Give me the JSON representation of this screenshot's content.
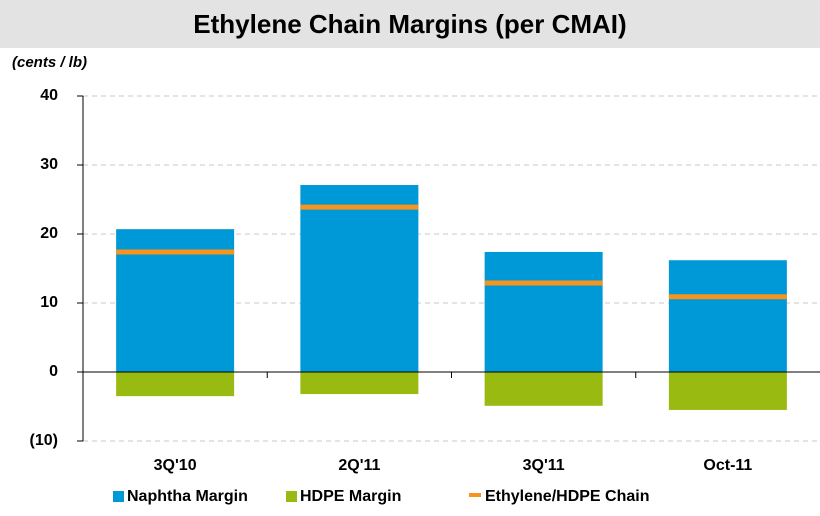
{
  "chart_data": {
    "type": "bar",
    "title": "Ethylene Chain Margins (per CMAI)",
    "y_label": "(cents / lb)",
    "categories": [
      "3Q'10",
      "2Q'11",
      "3Q'11",
      "Oct-11"
    ],
    "series": [
      {
        "name": "Naphtha Margin",
        "color": "#0099d8",
        "style": "bar",
        "values": [
          20.7,
          27.1,
          17.4,
          16.2
        ]
      },
      {
        "name": "HDPE Margin",
        "color": "#99bb11",
        "style": "bar",
        "values": [
          -3.5,
          -3.2,
          -4.9,
          -5.5
        ]
      },
      {
        "name": "Ethylene/HDPE Chain",
        "color": "#f7941d",
        "style": "dash",
        "values": [
          17.4,
          23.9,
          12.9,
          10.9
        ]
      }
    ],
    "ylim": [
      -10,
      40
    ],
    "yticks": [
      {
        "value": -10,
        "label": "(10)"
      },
      0,
      10,
      20,
      30,
      40
    ],
    "grid": true,
    "legend": "bottom"
  }
}
